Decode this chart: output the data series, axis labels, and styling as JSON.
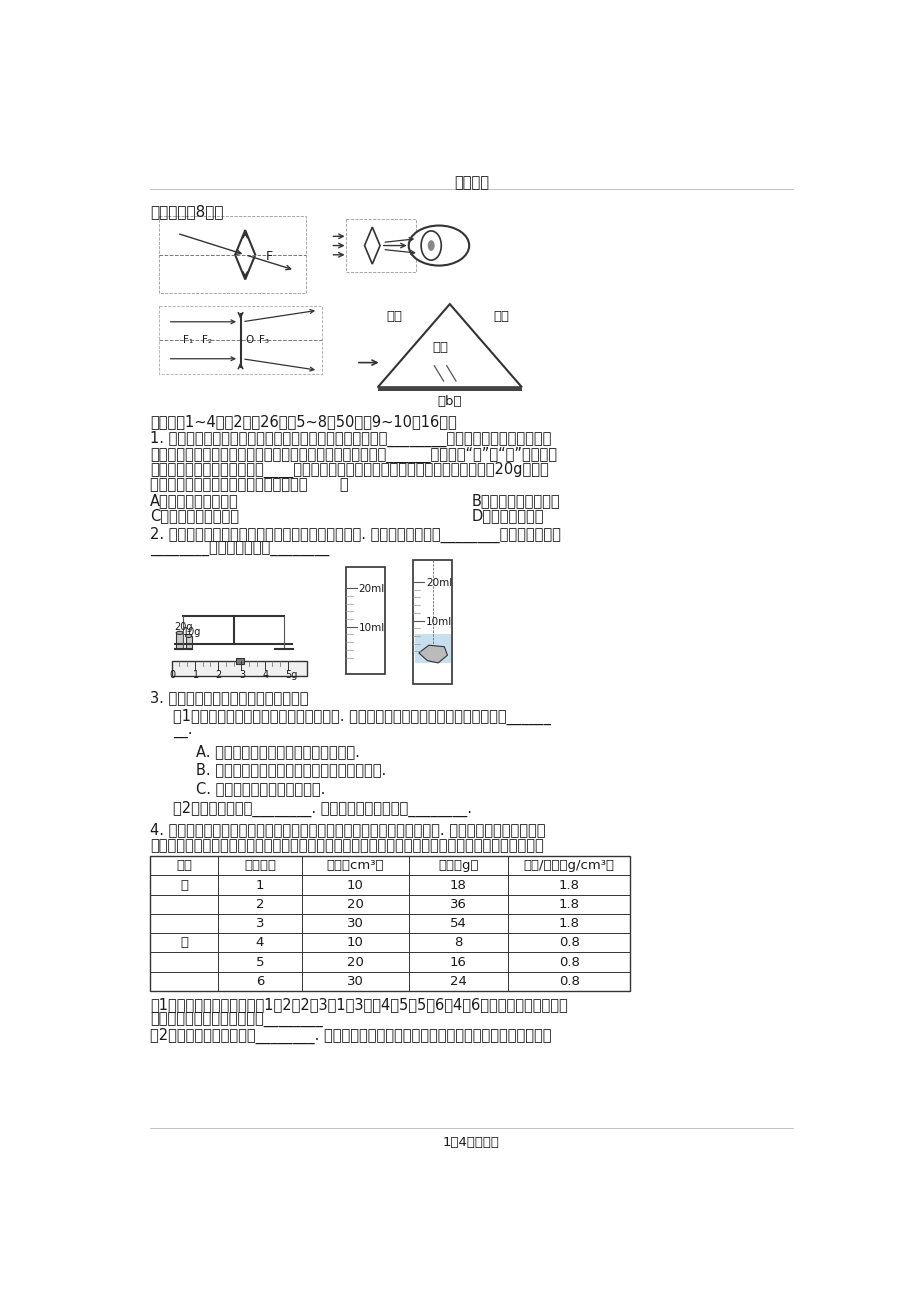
{
  "header": "每天教育",
  "title_zuotu": "作图题（兲8分）",
  "shiyanti_label": "实验题（1~4每穲2分剨26分，5~8剨50分，9~10剨16分）",
  "q1_l1": "1. 对放在水平桌面上的托盘天平进行调节时，应将游码放在________。当游码放好后，若发现指",
  "q1_l2": "针的位置偏向分度盘的左侧，要使横梁平衡，应将平衡螺母向______调节（填“左”或“右”）。称量",
  "q1_l3": "时，应把待测物体放在天平的____盘里。在称量某一物体的质量时，开始向左盘中加入20g的砂码",
  "q1_l4": "后，观察指针在分度盘中线的左侧，则（       ）",
  "q1_A": "A、在右盘中增加砂码",
  "q1_B": "B、在右盘中减少砂码",
  "q1_C": "C、向右调节平衡螺母",
  "q1_D": "D、向左调节游码",
  "q2_l1": "2. 用天平和量筒测不规则的石块的密度中，如图所示. 测得石块的质量为________，石块的体积为",
  "q2_l2": "________、石块的密度为________",
  "q3_title": "3. 用天平和量筒测量盐水密度的实验：",
  "q3_1": "（1）在使用托盘天平前要对天平进行调节. 按正确的顺序将下列各步骤前的字母排列______",
  "q3_1b": "__.",
  "q3_A": "A. 组装好天平，把天平放在水平台面上.",
  "q3_B": "B. 调节天平的平衡螺母，使天平横梁水平平衡.",
  "q3_C": "C. 把游码置于标尺的零刻线处.",
  "q3_2": "（2）实验的公式是________. 将上述步骤按顺序排列________.",
  "q4_l1": "4. 为了研究物质的某种特性，某同学分别用甲、乙两种不同的液体做实验. 实验时，他用量筒和天平",
  "q4_l2": "分别测出甲（或乙）液体在不同体积的质量。下表记录的实验测得的数据及求得的质量跟体积的比値。",
  "table_headers": [
    "物质",
    "实验次数",
    "体积（cm³）",
    "质量（g）",
    "质量/体积（g/cm³）"
  ],
  "table_data": [
    [
      "甲",
      "1",
      "10",
      "18",
      "1.8"
    ],
    [
      "",
      "2",
      "20",
      "36",
      "1.8"
    ],
    [
      "",
      "3",
      "30",
      "54",
      "1.8"
    ],
    [
      "乙",
      "4",
      "10",
      "8",
      "0.8"
    ],
    [
      "",
      "5",
      "20",
      "16",
      "0.8"
    ],
    [
      "",
      "6",
      "30",
      "24",
      "0.8"
    ]
  ],
  "q4_1_l1": "（1）分析上表中的实验次数1与2（2与3、1与3）或4与5（5与6、4与6）的体积及质量变化的",
  "q4_1_l2": "倍数关系，可归纳出的结论是________",
  "q4_2": "（2）分析上表中实验次数________. 可归纳出的结论是相同体积的甲、乙两种液体，它们的质量",
  "footer": "1／4每天教育",
  "bg_color": "#ffffff",
  "text_color": "#1a1a1a"
}
